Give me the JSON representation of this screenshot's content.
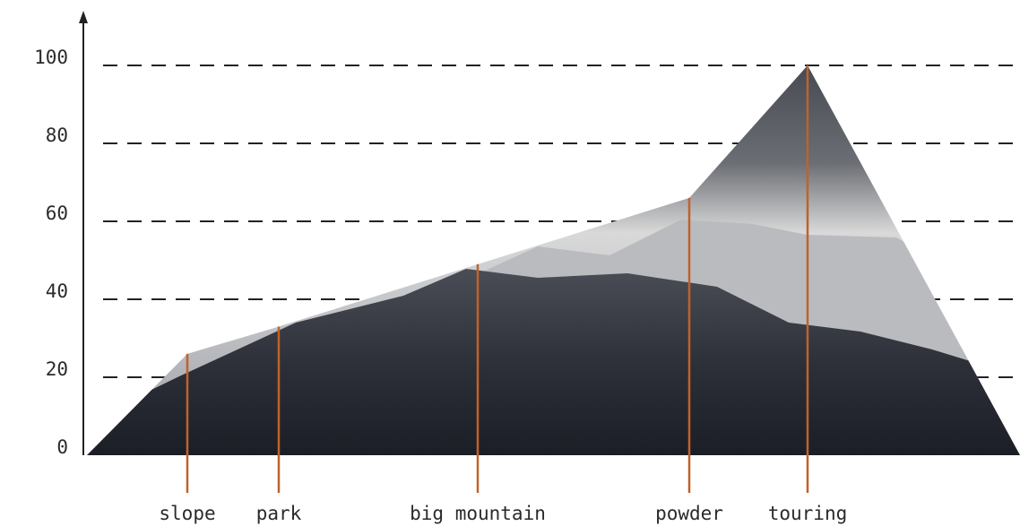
{
  "chart_data": {
    "type": "area",
    "categories": [
      "slope",
      "park",
      "big mountain",
      "powder",
      "touring"
    ],
    "values": [
      26,
      33,
      49,
      66,
      100
    ],
    "marker_color": "#c0622a",
    "ylim": [
      0,
      100
    ],
    "yticks": [
      0,
      20,
      40,
      60,
      80,
      100
    ],
    "grid": true
  }
}
